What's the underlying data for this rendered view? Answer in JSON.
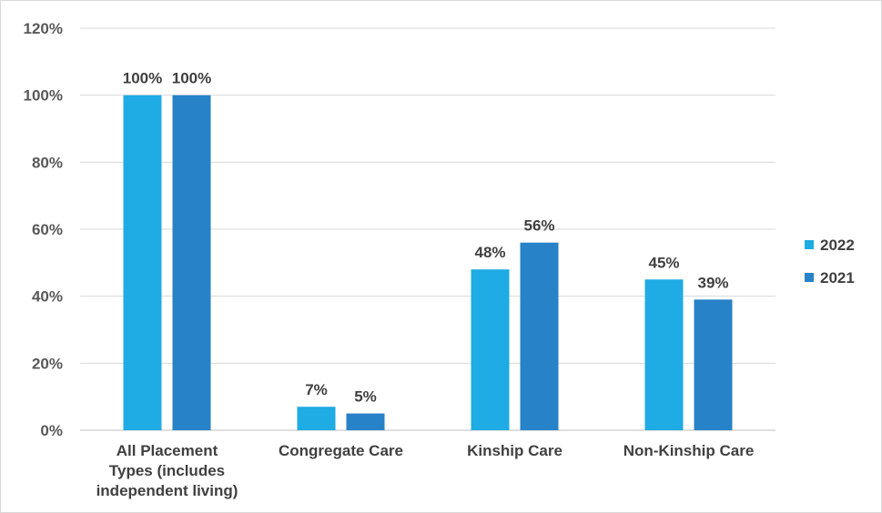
{
  "chart_data": {
    "type": "bar",
    "categories": [
      [
        "All Placement",
        "Types (includes",
        "independent living)"
      ],
      [
        "Congregate Care"
      ],
      [
        "Kinship Care"
      ],
      [
        "Non-Kinship Care"
      ]
    ],
    "series": [
      {
        "name": "2022",
        "color": "#1fabe3",
        "values": [
          100,
          7,
          48,
          45
        ],
        "labels": [
          "100%",
          "7%",
          "48%",
          "45%"
        ]
      },
      {
        "name": "2021",
        "color": "#2782c8",
        "values": [
          100,
          5,
          56,
          39
        ],
        "labels": [
          "100%",
          "5%",
          "56%",
          "39%"
        ]
      }
    ],
    "yaxis": {
      "min": 0,
      "max": 120,
      "step": 20,
      "tick_labels": [
        "0%",
        "20%",
        "40%",
        "60%",
        "80%",
        "100%",
        "120%"
      ]
    },
    "grid": true,
    "legend_position": "right"
  }
}
